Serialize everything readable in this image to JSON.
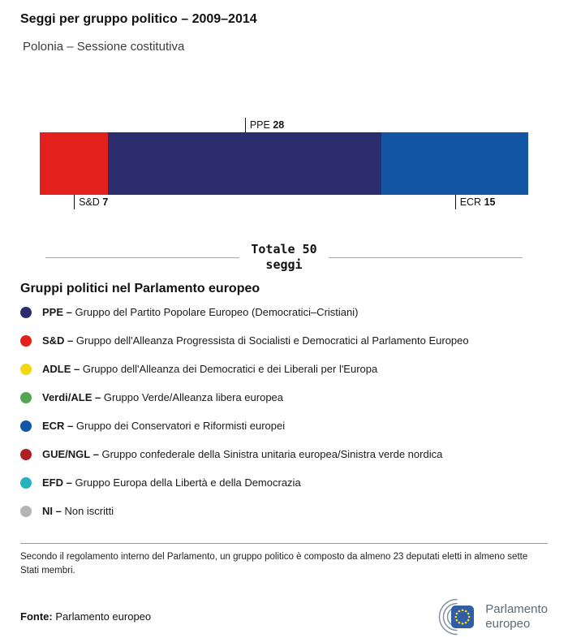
{
  "header": {
    "title": "Seggi per gruppo politico – 2009–2014",
    "subtitle": "Polonia – Sessione costitutiva"
  },
  "chart_data": {
    "type": "bar",
    "variant": "horizontal-stacked",
    "title": "Seggi per gruppo politico – 2009–2014",
    "subtitle": "Polonia – Sessione costitutiva",
    "total": 50,
    "unit": "seggi",
    "xlim": [
      0,
      50
    ],
    "legend_position": "below",
    "segments": [
      {
        "group": "S&D",
        "seats": 7,
        "color": "#e2201c",
        "label_position": "below"
      },
      {
        "group": "PPE",
        "seats": 28,
        "color": "#2b2d6e",
        "label_position": "above"
      },
      {
        "group": "ECR",
        "seats": 15,
        "color": "#1356a4",
        "label_position": "below"
      }
    ]
  },
  "total_label": {
    "line1": "Totale 50",
    "line2": "seggi"
  },
  "legend": {
    "heading": "Gruppi politici nel Parlamento europeo",
    "items": [
      {
        "abbr": "PPE –",
        "name": "Gruppo del Partito Popolare Europeo (Democratici–Cristiani)",
        "color": "#2b2d6e"
      },
      {
        "abbr": "S&D –",
        "name": "Gruppo dell'Alleanza Progressista di Socialisti e Democratici al Parlamento Europeo",
        "color": "#e2201c"
      },
      {
        "abbr": "ADLE –",
        "name": "Gruppo dell'Alleanza dei Democratici e dei Liberali per l'Europa",
        "color": "#f5d612"
      },
      {
        "abbr": "Verdi/ALE –",
        "name": "Gruppo Verde/Alleanza libera europea",
        "color": "#52a552"
      },
      {
        "abbr": "ECR –",
        "name": "Gruppo dei Conservatori e Riformisti europei",
        "color": "#1356a4"
      },
      {
        "abbr": "GUE/NGL –",
        "name": "Gruppo confederale della Sinistra unitaria europea/Sinistra verde nordica",
        "color": "#b01f24"
      },
      {
        "abbr": "EFD –",
        "name": "Gruppo Europa della Libertà e della Democrazia",
        "color": "#25b1be"
      },
      {
        "abbr": "NI –",
        "name": "Non iscritti",
        "color": "#b4b4b4"
      }
    ]
  },
  "footnote": "Secondo il regolamento interno del Parlamento, un gruppo politico è composto da almeno 23 deputati eletti in almeno sette Stati membri.",
  "footer": {
    "source_label": "Fonte:",
    "source_text": "Parlamento europeo",
    "logo_line1": "Parlamento",
    "logo_line2": "europeo"
  }
}
